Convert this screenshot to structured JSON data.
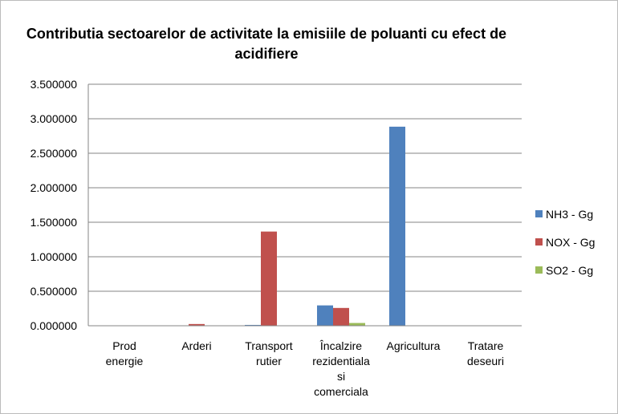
{
  "chart_data": {
    "type": "bar",
    "title": "Contributia sectoarelor de activitate la emisiile de poluanti cu efect de acidifiere",
    "categories": [
      "Prod energie",
      "Arderi",
      "Transport rutier",
      "Încalzire rezidentiala si comerciala",
      "Agricultura",
      "Tratare deseuri"
    ],
    "series": [
      {
        "name": "NH3 - Gg",
        "color": "#4f81bd",
        "values": [
          0.001,
          0.002,
          0.012,
          0.295,
          2.885,
          0.003
        ]
      },
      {
        "name": "NOX - Gg",
        "color": "#c0504d",
        "values": [
          0.002,
          0.025,
          1.365,
          0.258,
          0.004,
          0.001
        ]
      },
      {
        "name": "SO2 - Gg",
        "color": "#9bbb59",
        "values": [
          0.001,
          0.003,
          0.002,
          0.04,
          0.001,
          0.0
        ]
      }
    ],
    "ylim": [
      0,
      3.5
    ],
    "yticks": [
      {
        "value": 0,
        "label": "0.000000"
      },
      {
        "value": 0.5,
        "label": "0.500000"
      },
      {
        "value": 1,
        "label": "1.000000"
      },
      {
        "value": 1.5,
        "label": "1.500000"
      },
      {
        "value": 2,
        "label": "2.000000"
      },
      {
        "value": 2.5,
        "label": "2.500000"
      },
      {
        "value": 3,
        "label": "3.000000"
      },
      {
        "value": 3.5,
        "label": "3.500000"
      }
    ],
    "grid": true,
    "legend": "right"
  }
}
